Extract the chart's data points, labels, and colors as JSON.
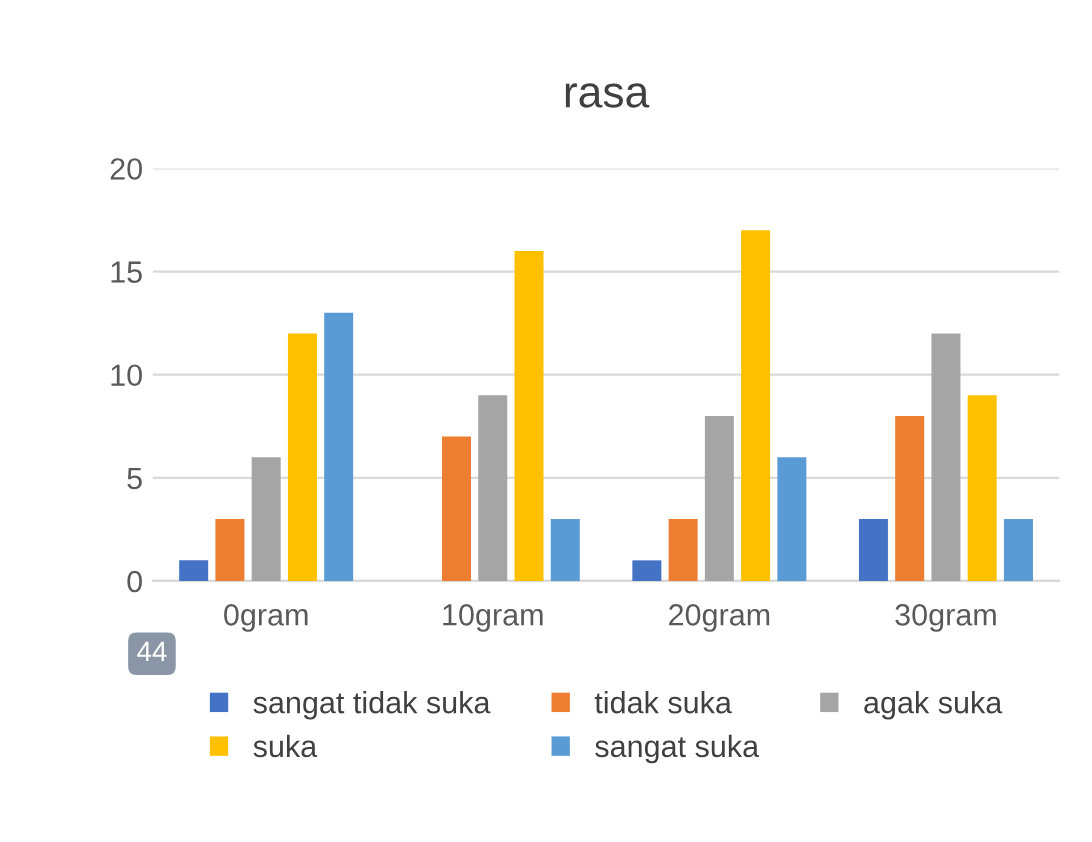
{
  "chart_data": {
    "type": "bar",
    "title": "rasa",
    "categories": [
      "0gram",
      "10gram",
      "20gram",
      "30gram"
    ],
    "series": [
      {
        "name": "sangat tidak suka",
        "color": "#4472c4",
        "values": [
          1,
          0,
          1,
          3
        ]
      },
      {
        "name": "tidak suka",
        "color": "#ed7d31",
        "values": [
          3,
          7,
          3,
          8
        ]
      },
      {
        "name": "agak suka",
        "color": "#a5a5a5",
        "values": [
          6,
          9,
          8,
          12
        ]
      },
      {
        "name": "suka",
        "color": "#ffc000",
        "values": [
          12,
          16,
          17,
          9
        ]
      },
      {
        "name": "sangat suka",
        "color": "#5b9bd5",
        "values": [
          13,
          3,
          6,
          3
        ]
      }
    ],
    "ylim": [
      0,
      20
    ],
    "yticks": [
      0,
      5,
      10,
      15,
      20
    ],
    "grid": "y",
    "legend": "bottom",
    "annotations": [
      "44"
    ]
  }
}
